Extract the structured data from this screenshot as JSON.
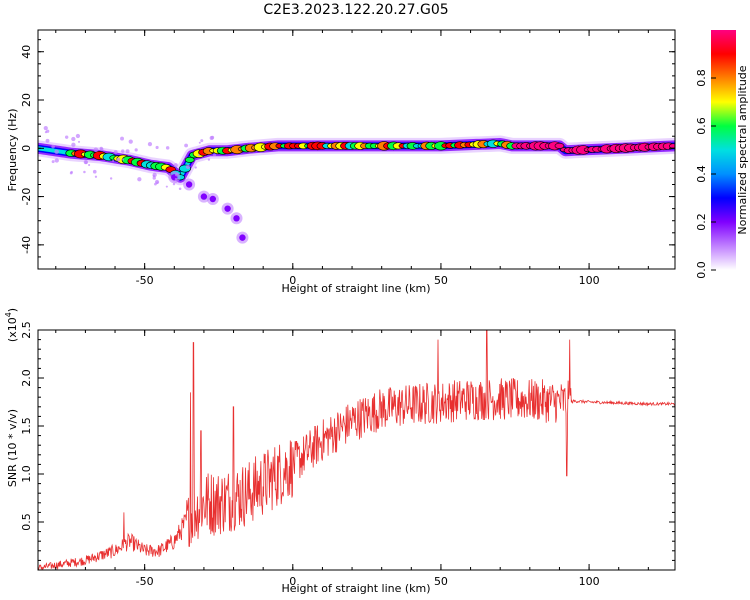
{
  "title": "C2E3.2023.122.20.27.G05",
  "chart_data": [
    {
      "type": "heatmap",
      "xlabel": "Height of straight line (km)",
      "ylabel": "Frequency (Hz)",
      "xlim": [
        -86,
        129
      ],
      "ylim": [
        -50,
        49
      ],
      "xticks": [
        -50,
        0,
        50,
        100
      ],
      "yticks": [
        -40,
        -20,
        0,
        20,
        40
      ],
      "grid": false,
      "colorbar": {
        "label": "Normalized spectral amplitude",
        "range": [
          0.0,
          1.0
        ],
        "ticks": [
          "0.0",
          "0.2",
          "0.4",
          "0.6",
          "0.8"
        ],
        "colors": [
          "#ffffff",
          "#c080ff",
          "#8000ff",
          "#0000ff",
          "#0090ff",
          "#00e0e0",
          "#00ff40",
          "#ffff00",
          "#ff8000",
          "#ff0000",
          "#ff0080"
        ]
      },
      "main_track": {
        "x": [
          -86,
          -75,
          -65,
          -55,
          -48,
          -42,
          -38,
          -34,
          -28,
          -22,
          -15,
          -5,
          10,
          30,
          50,
          70,
          74,
          90,
          92,
          129
        ],
        "y": [
          0,
          -2,
          -3,
          -5,
          -7,
          -8,
          -12,
          -3,
          -1,
          -1,
          0,
          1,
          1,
          1,
          1,
          2,
          1,
          1,
          -1,
          1
        ]
      },
      "secondary_branch": {
        "x": [
          -40,
          -35,
          -30,
          -27,
          -22,
          -19,
          -17
        ],
        "y": [
          -12,
          -15,
          -20,
          -21,
          -25,
          -29,
          -37
        ]
      }
    },
    {
      "type": "line",
      "xlabel": "Height of straight line (km)",
      "ylabel": "SNR (10 * v/v)",
      "y_multiplier": "(x10^4)",
      "y_multiplier_base": "(x10",
      "y_multiplier_exp": "4",
      "y_multiplier_close": ")",
      "xlim": [
        -86,
        129
      ],
      "ylim": [
        0,
        2.5
      ],
      "xticks": [
        -50,
        0,
        50,
        100
      ],
      "yticks": [
        0.5,
        1.0,
        1.5,
        2.0,
        2.5
      ],
      "ytick_labels": [
        "0.5",
        "1.0",
        "1.5",
        "2.0",
        "2.5"
      ],
      "grid": false,
      "series": [
        {
          "color": "#e83030",
          "envelope_x": [
            -86,
            -80,
            -70,
            -60,
            -55,
            -50,
            -45,
            -40,
            -36,
            -30,
            -25,
            -20,
            -15,
            -10,
            -5,
            0,
            10,
            20,
            30,
            40,
            50,
            60,
            70,
            80,
            90,
            94,
            95,
            100,
            110,
            120,
            129
          ],
          "envelope_y": [
            0.02,
            0.05,
            0.1,
            0.2,
            0.3,
            0.2,
            0.2,
            0.3,
            0.5,
            0.7,
            0.7,
            0.75,
            0.8,
            0.9,
            1.0,
            1.1,
            1.35,
            1.55,
            1.68,
            1.72,
            1.75,
            1.78,
            1.78,
            1.77,
            1.75,
            1.75,
            1.76,
            1.75,
            1.74,
            1.73,
            1.73
          ],
          "spikes": [
            {
              "x": -33.5,
              "y": 2.37
            },
            {
              "x": -34.5,
              "y": 1.85
            },
            {
              "x": -31,
              "y": 1.45
            },
            {
              "x": -20,
              "y": 1.7
            },
            {
              "x": -57,
              "y": 0.6
            },
            {
              "x": 49,
              "y": 2.4
            },
            {
              "x": 65.5,
              "y": 2.52
            },
            {
              "x": 93.5,
              "y": 2.4
            },
            {
              "x": 92.5,
              "y": 0.98
            }
          ]
        }
      ]
    }
  ]
}
